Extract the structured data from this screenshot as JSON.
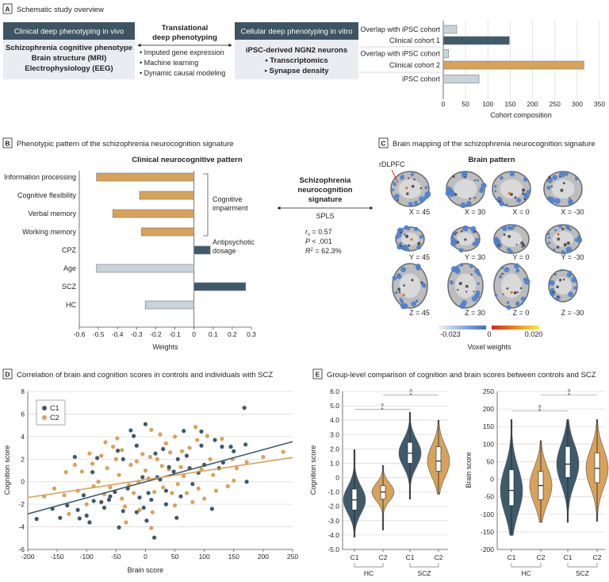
{
  "colors": {
    "c1": "#3f5a6b",
    "c2": "#d8a25a",
    "light": "#c8d3db",
    "header": "#3e5463",
    "box": "#e9ecf0",
    "neg": "#3d74c4",
    "pos": "#e03a1e"
  },
  "panelA": {
    "letter": "A",
    "title": "Schematic study overview",
    "left_box": {
      "header": "Clinical deep phenotyping in vivo",
      "lines": [
        "Schizophrenia cognitive phenotype",
        "Brain structure (MRI)",
        "Electrophysiology  (EEG)"
      ]
    },
    "middle": {
      "title_lines": [
        "Translational",
        "deep phenotyping"
      ],
      "bullets": [
        "Imputed gene expression",
        "Machine learning",
        "Dynamic causal modeling"
      ]
    },
    "right_box": {
      "header": "Cellular deep phenotyping in vitro",
      "lines": [
        "iPSC-derived NGN2 neurons",
        "• Transcriptomics",
        "• Synapse density"
      ]
    }
  },
  "panelB": {
    "letter": "B",
    "title": "Phenotypic pattern of the schizophrenia neurocognition signature",
    "bracket_label_1": [
      "Cognitive",
      "impairment"
    ],
    "bracket_label_2": [
      "Antipsychotic",
      "dosage"
    ]
  },
  "signature": {
    "title_lines": [
      "Schizophrenia",
      "neurocognition",
      "signature"
    ],
    "method": "SPLS",
    "stats": {
      "rs_symbol": "r",
      "rs_sub": "s",
      "rs_value": " = 0.57",
      "p": "P",
      "p_value": " < .001",
      "r2": "R",
      "r2_sup": "2",
      "r2_value": " = 62.3%"
    }
  },
  "panelC": {
    "letter": "C",
    "title": "Brain mapping of the schizophrenia neurocognition signature",
    "subtitle": "Brain pattern",
    "annotation": "rDLPFC",
    "rows": [
      [
        "X = 45",
        "X = 30",
        "X = 0",
        "X = -30"
      ],
      [
        "Y = 45",
        "Y = 30",
        "Y = 0",
        "Y = -30"
      ],
      [
        "Z = 45",
        "Z = 30",
        "Z = 0",
        "Z = -30"
      ]
    ],
    "colorbar": {
      "min": "-0.023",
      "mid": "0",
      "max": "0.020",
      "label": "Voxel weights"
    }
  },
  "panelD": {
    "letter": "D",
    "title": "Correlation of brain and cognition scores in controls and individuals with SCZ"
  },
  "panelE": {
    "letter": "E",
    "title": "Group-level comparison of cognition and brain scores between controls and SCZ"
  },
  "chart_data": [
    {
      "id": "cohort",
      "type": "bar",
      "orientation": "horizontal",
      "categories": [
        "Overlap with iPSC cohort",
        "Clinical cohort 1",
        "Overlap with iPSC cohort",
        "Clinical cohort 2",
        "iPSC cohort"
      ],
      "values": [
        30,
        148,
        12,
        315,
        80
      ],
      "bar_colors": [
        "light",
        "c1",
        "light",
        "c2",
        "light"
      ],
      "xlabel": "Cohort composition",
      "xlim": [
        0,
        350
      ],
      "xticks": [
        0,
        50,
        100,
        150,
        200,
        250,
        300,
        350
      ],
      "grid": true
    },
    {
      "id": "weights",
      "type": "bar",
      "orientation": "horizontal",
      "title": "Clinical neurocognitive pattern",
      "categories": [
        "Information processing",
        "Cognitive flexibility",
        "Verbal memory",
        "Working memory",
        "CPZ",
        "Age",
        "SCZ",
        "HC"
      ],
      "values": [
        -0.51,
        -0.285,
        -0.425,
        -0.275,
        0.085,
        -0.51,
        0.27,
        -0.255
      ],
      "bar_colors": [
        "c2",
        "c2",
        "c2",
        "c2",
        "c1",
        "light",
        "c1",
        "light"
      ],
      "xlabel": "Weights",
      "xlim": [
        -0.6,
        0.3
      ],
      "xticks": [
        "-0.6",
        "-0.5",
        "-0.4",
        "-0.3",
        "-0.2",
        "-0.1",
        "0",
        "0.1",
        "0.2",
        "0.3"
      ]
    },
    {
      "id": "scatter",
      "type": "scatter",
      "xlabel": "Brain score",
      "ylabel": "Cognition score",
      "xlim": [
        -200,
        250
      ],
      "ylim": [
        -6,
        8
      ],
      "xticks": [
        -200,
        -150,
        -100,
        -50,
        0,
        50,
        100,
        150,
        200,
        250
      ],
      "yticks": [
        -6,
        -4,
        -2,
        0,
        2,
        4,
        6,
        8
      ],
      "legend": "top-left",
      "grid": true,
      "series": [
        {
          "name": "C1",
          "color": "c1",
          "fit": [
            [
              -200,
              -2.85
            ],
            [
              250,
              3.55
            ]
          ],
          "points": [
            [
              -185,
              -3.3
            ],
            [
              -158,
              -2.4
            ],
            [
              -145,
              -3.2
            ],
            [
              -133,
              -2.1
            ],
            [
              -120,
              2.2
            ],
            [
              -115,
              -2.5
            ],
            [
              -112,
              -3.25
            ],
            [
              -100,
              -3.0
            ],
            [
              -95,
              -3.6
            ],
            [
              -90,
              0.85
            ],
            [
              -88,
              -1.7
            ],
            [
              -82,
              2.1
            ],
            [
              -70,
              -2.3
            ],
            [
              -62,
              -1.6
            ],
            [
              -45,
              -4.05
            ],
            [
              -47,
              2.75
            ],
            [
              -38,
              -2.6
            ],
            [
              -38,
              2.0
            ],
            [
              -25,
              4.55
            ],
            [
              -20,
              4.05
            ],
            [
              -15,
              3.2
            ],
            [
              -15,
              -2.7
            ],
            [
              -3,
              -2.3
            ],
            [
              0,
              5.1
            ],
            [
              2,
              -3.45
            ],
            [
              5,
              -1.0
            ],
            [
              15,
              -4.95
            ],
            [
              17,
              2.5
            ],
            [
              30,
              2.9
            ],
            [
              35,
              -2.0
            ],
            [
              53,
              -3.2
            ],
            [
              55,
              2.0
            ],
            [
              65,
              4.5
            ],
            [
              70,
              2.3
            ],
            [
              80,
              -0.2
            ],
            [
              95,
              4.45
            ],
            [
              95,
              3.2
            ],
            [
              100,
              1.5
            ],
            [
              113,
              -2.4
            ],
            [
              118,
              3.7
            ],
            [
              125,
              1.2
            ],
            [
              130,
              3.1
            ],
            [
              145,
              3.1
            ],
            [
              150,
              2.7
            ],
            [
              168,
              6.55
            ],
            [
              170,
              3.3
            ],
            [
              172,
              0.0
            ],
            [
              -5,
              0.4
            ],
            [
              20,
              0.4
            ],
            [
              40,
              1.3
            ],
            [
              -60,
              -1.3
            ],
            [
              10,
              -1.6
            ],
            [
              25,
              0.2
            ],
            [
              48,
              0.9
            ],
            [
              60,
              -1.3
            ],
            [
              75,
              1.2
            ],
            [
              -105,
              -1.2
            ],
            [
              -75,
              -1.8
            ],
            [
              -52,
              -0.9
            ],
            [
              -30,
              -0.6
            ],
            [
              -10,
              -1.4
            ],
            [
              35,
              -0.8
            ],
            [
              90,
              0.8
            ],
            [
              132,
              1.7
            ]
          ]
        },
        {
          "name": "C2",
          "color": "c2",
          "fit": [
            [
              -200,
              -1.4
            ],
            [
              250,
              2.15
            ]
          ],
          "points": [
            [
              -172,
              -1.3
            ],
            [
              -155,
              -0.6
            ],
            [
              -138,
              -1.2
            ],
            [
              -135,
              0.85
            ],
            [
              -130,
              -2.85
            ],
            [
              -120,
              1.5
            ],
            [
              -108,
              0.9
            ],
            [
              -95,
              2.5
            ],
            [
              -88,
              -0.4
            ],
            [
              -75,
              2.3
            ],
            [
              -68,
              3.5
            ],
            [
              -55,
              3.1
            ],
            [
              -48,
              3.85
            ],
            [
              -40,
              2.8
            ],
            [
              -33,
              -3.6
            ],
            [
              -25,
              1.5
            ],
            [
              -12,
              0.0
            ],
            [
              -5,
              2.45
            ],
            [
              10,
              4.6
            ],
            [
              10,
              -4.1
            ],
            [
              12,
              -2.7
            ],
            [
              25,
              4.2
            ],
            [
              40,
              1.1
            ],
            [
              50,
              4.0
            ],
            [
              50,
              -2.1
            ],
            [
              60,
              1.3
            ],
            [
              75,
              3.0
            ],
            [
              85,
              4.85
            ],
            [
              90,
              -0.6
            ],
            [
              100,
              -1.5
            ],
            [
              105,
              4.05
            ],
            [
              110,
              2.0
            ],
            [
              120,
              -0.8
            ],
            [
              130,
              3.8
            ],
            [
              140,
              -0.4
            ],
            [
              148,
              2.0
            ],
            [
              150,
              0.1
            ],
            [
              155,
              1.2
            ],
            [
              200,
              2.2
            ],
            [
              234,
              2.65
            ],
            [
              172,
              1.75
            ],
            [
              -60,
              -0.5
            ],
            [
              -20,
              -1.0
            ],
            [
              0,
              1.0
            ],
            [
              30,
              -0.5
            ],
            [
              -80,
              0.0
            ],
            [
              -40,
              -1.5
            ],
            [
              65,
              0.5
            ],
            [
              20,
              2.0
            ],
            [
              -100,
              -2.0
            ],
            [
              45,
              -1.0
            ],
            [
              80,
              -1.8
            ],
            [
              -10,
              -2.5
            ],
            [
              35,
              3.4
            ],
            [
              -65,
              1.2
            ],
            [
              -45,
              0.6
            ],
            [
              -28,
              -0.3
            ],
            [
              -15,
              1.8
            ],
            [
              5,
              0.3
            ],
            [
              15,
              -0.9
            ],
            [
              28,
              1.4
            ],
            [
              55,
              -0.2
            ],
            [
              70,
              -1.0
            ],
            [
              95,
              1.1
            ],
            [
              115,
              0.6
            ],
            [
              -115,
              -0.8
            ],
            [
              -90,
              1.6
            ],
            [
              -70,
              -1.1
            ],
            [
              -50,
              2.0
            ],
            [
              -35,
              -2.2
            ],
            [
              8,
              2.2
            ],
            [
              42,
              2.6
            ],
            [
              62,
              2.7
            ],
            [
              88,
              3.7
            ]
          ]
        }
      ]
    },
    {
      "id": "violin-cognition",
      "type": "violin",
      "ylabel": "Cognition score",
      "ylim": [
        -5,
        6
      ],
      "yticks": [
        "-5.0",
        "-4.0",
        "-3.0",
        "-2.0",
        "-1.0",
        "0",
        "1.0",
        "2.0",
        "3.0",
        "4.0",
        "5.0",
        "6.0"
      ],
      "categories": [
        "C1",
        "C2",
        "C1",
        "C2"
      ],
      "groups": [
        {
          "label": "HC",
          "span": [
            0,
            1
          ]
        },
        {
          "label": "SCZ",
          "span": [
            2,
            3
          ]
        }
      ],
      "series": [
        {
          "label": "C1",
          "group": "HC",
          "color": "c1",
          "min": -4.15,
          "q1": -2.25,
          "median": -1.55,
          "q3": -0.8,
          "max": 1.95
        },
        {
          "label": "C2",
          "group": "HC",
          "color": "c2",
          "min": -3.65,
          "q1": -1.5,
          "median": -1.0,
          "q3": -0.55,
          "max": 0.85
        },
        {
          "label": "C1",
          "group": "SCZ",
          "color": "c1",
          "min": -1.5,
          "q1": 1.0,
          "median": 1.7,
          "q3": 2.45,
          "max": 4.55
        },
        {
          "label": "C2",
          "group": "SCZ",
          "color": "c2",
          "min": -1.15,
          "q1": 0.45,
          "median": 1.15,
          "q3": 2.15,
          "max": 4.0
        }
      ],
      "significance": [
        {
          "from": 0,
          "to": 2,
          "level": 4.75,
          "mark": "a"
        },
        {
          "from": 1,
          "to": 3,
          "level": 5.75,
          "mark": "a"
        }
      ]
    },
    {
      "id": "violin-brain",
      "type": "violin",
      "ylabel": "Brain score",
      "ylim": [
        -200,
        250
      ],
      "yticks": [
        "-200",
        "-150",
        "-100",
        "-50",
        "0",
        "50",
        "100",
        "150",
        "200",
        "250"
      ],
      "categories": [
        "C1",
        "C2",
        "C1",
        "C2"
      ],
      "groups": [
        {
          "label": "HC",
          "span": [
            0,
            1
          ]
        },
        {
          "label": "SCZ",
          "span": [
            2,
            3
          ]
        }
      ],
      "series": [
        {
          "label": "C1",
          "group": "HC",
          "color": "c1",
          "min": -160,
          "q1": -75,
          "median": -32,
          "q3": 27,
          "max": 170
        },
        {
          "label": "C2",
          "group": "HC",
          "color": "c2",
          "min": -123,
          "q1": -58,
          "median": -18,
          "q3": 22,
          "max": 110
        },
        {
          "label": "C1",
          "group": "SCZ",
          "color": "c1",
          "min": -123,
          "q1": 5,
          "median": 43,
          "q3": 93,
          "max": 170
        },
        {
          "label": "C2",
          "group": "SCZ",
          "color": "c2",
          "min": -120,
          "q1": -10,
          "median": 31,
          "q3": 75,
          "max": 170
        }
      ],
      "significance": [
        {
          "from": 0,
          "to": 2,
          "level": 195,
          "mark": "a"
        },
        {
          "from": 1,
          "to": 3,
          "level": 240,
          "mark": "a"
        }
      ]
    }
  ]
}
